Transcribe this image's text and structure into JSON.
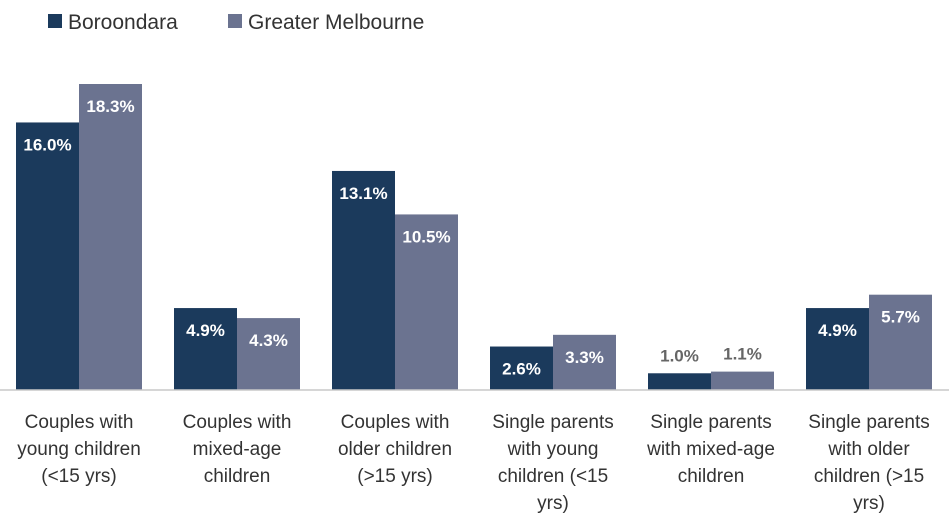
{
  "chart_data": {
    "type": "bar",
    "categories": [
      [
        "Couples with",
        "young children",
        "(<15 yrs)"
      ],
      [
        "Couples with",
        "mixed-age",
        "children"
      ],
      [
        "Couples with",
        "older children",
        "(>15 yrs)"
      ],
      [
        "Single parents",
        "with young",
        "children (<15",
        "yrs)"
      ],
      [
        "Single parents",
        "with mixed-age",
        "children"
      ],
      [
        "Single parents",
        "with older",
        "children (>15",
        "yrs)"
      ]
    ],
    "series": [
      {
        "name": "Boroondara",
        "color": "#1b3a5c",
        "values": [
          16.0,
          4.9,
          13.1,
          2.6,
          1.0,
          4.9
        ],
        "labels": [
          "16.0%",
          "4.9%",
          "13.1%",
          "2.6%",
          "1.0%",
          "4.9%"
        ]
      },
      {
        "name": "Greater Melbourne",
        "color": "#6b7390",
        "values": [
          18.3,
          4.3,
          10.5,
          3.3,
          1.1,
          5.7
        ],
        "labels": [
          "18.3%",
          "4.3%",
          "10.5%",
          "3.3%",
          "1.1%",
          "5.7%"
        ]
      }
    ],
    "ylim": [
      0,
      18.3
    ],
    "grid": false,
    "legend_position": "top-left",
    "axis_color": "#c8c8c8",
    "inside_label_color": "#ffffff",
    "outside_label_color": "#666666"
  }
}
